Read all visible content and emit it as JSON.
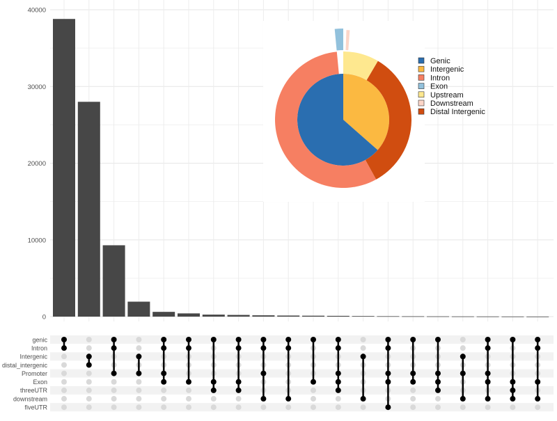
{
  "chart_data": [
    {
      "type": "bar",
      "title": "",
      "xlabel": "",
      "ylabel": "",
      "ylim": [
        0,
        40000
      ],
      "yticks": [
        0,
        10000,
        20000,
        30000,
        40000
      ],
      "ytick_labels": [
        "0",
        "10000",
        "20000",
        "30000",
        "40000"
      ],
      "grid": true,
      "bar_color": "#474747",
      "values": [
        38800,
        28000,
        9300,
        1950,
        620,
        420,
        260,
        220,
        170,
        140,
        120,
        100,
        75,
        55,
        45,
        35,
        28,
        22,
        16,
        10
      ]
    },
    {
      "type": "table",
      "name": "intersection-matrix",
      "sets": [
        "genic",
        "Intron",
        "Intergenic",
        "distal_intergenic",
        "Promoter",
        "Exon",
        "threeUTR",
        "downstream",
        "fiveUTR"
      ],
      "intersections": [
        [
          0,
          1
        ],
        [
          2,
          3
        ],
        [
          0,
          1,
          4
        ],
        [
          2,
          4
        ],
        [
          0,
          1,
          4,
          5
        ],
        [
          0,
          1,
          5
        ],
        [
          0,
          5,
          6
        ],
        [
          0,
          1,
          5,
          6
        ],
        [
          0,
          1,
          4,
          7
        ],
        [
          0,
          1,
          7
        ],
        [
          0,
          5
        ],
        [
          0,
          1,
          4,
          5,
          6
        ],
        [
          2,
          7
        ],
        [
          0,
          1,
          4,
          5,
          8
        ],
        [
          0,
          4,
          5
        ],
        [
          0,
          4,
          5,
          6
        ],
        [
          2,
          4,
          7
        ],
        [
          0,
          1,
          4,
          5,
          7
        ],
        [
          0,
          5,
          6,
          7
        ],
        [
          0,
          1,
          5,
          7
        ]
      ],
      "active_color": "#000000",
      "inactive_color": "#d9d9d9"
    },
    {
      "type": "pie",
      "legend_position": "right",
      "legend": [
        {
          "label": "Genic",
          "color": "#2a6eb0"
        },
        {
          "label": "Intergenic",
          "color": "#fbb941"
        },
        {
          "label": "Intron",
          "color": "#f67f62"
        },
        {
          "label": "Exon",
          "color": "#92c1dc"
        },
        {
          "label": "Upstream",
          "color": "#fee88f"
        },
        {
          "label": "Downstream",
          "color": "#fdd6c8"
        },
        {
          "label": "Distal Intergenic",
          "color": "#d04d10"
        }
      ],
      "inner_ring": [
        {
          "label": "Intergenic",
          "value": 36.5
        },
        {
          "label": "Genic",
          "value": 63.5
        }
      ],
      "outer_ring": [
        {
          "label": "Upstream",
          "value": 8.5,
          "exploded": false
        },
        {
          "label": "Distal Intergenic",
          "value": 33.5,
          "exploded": false
        },
        {
          "label": "Intron",
          "value": 56.5,
          "exploded": false
        },
        {
          "label": "Exon",
          "value": 1.5,
          "exploded": true
        }
      ],
      "extra_exploded": [
        {
          "label": "Downstream",
          "value": 0.6
        }
      ]
    }
  ]
}
